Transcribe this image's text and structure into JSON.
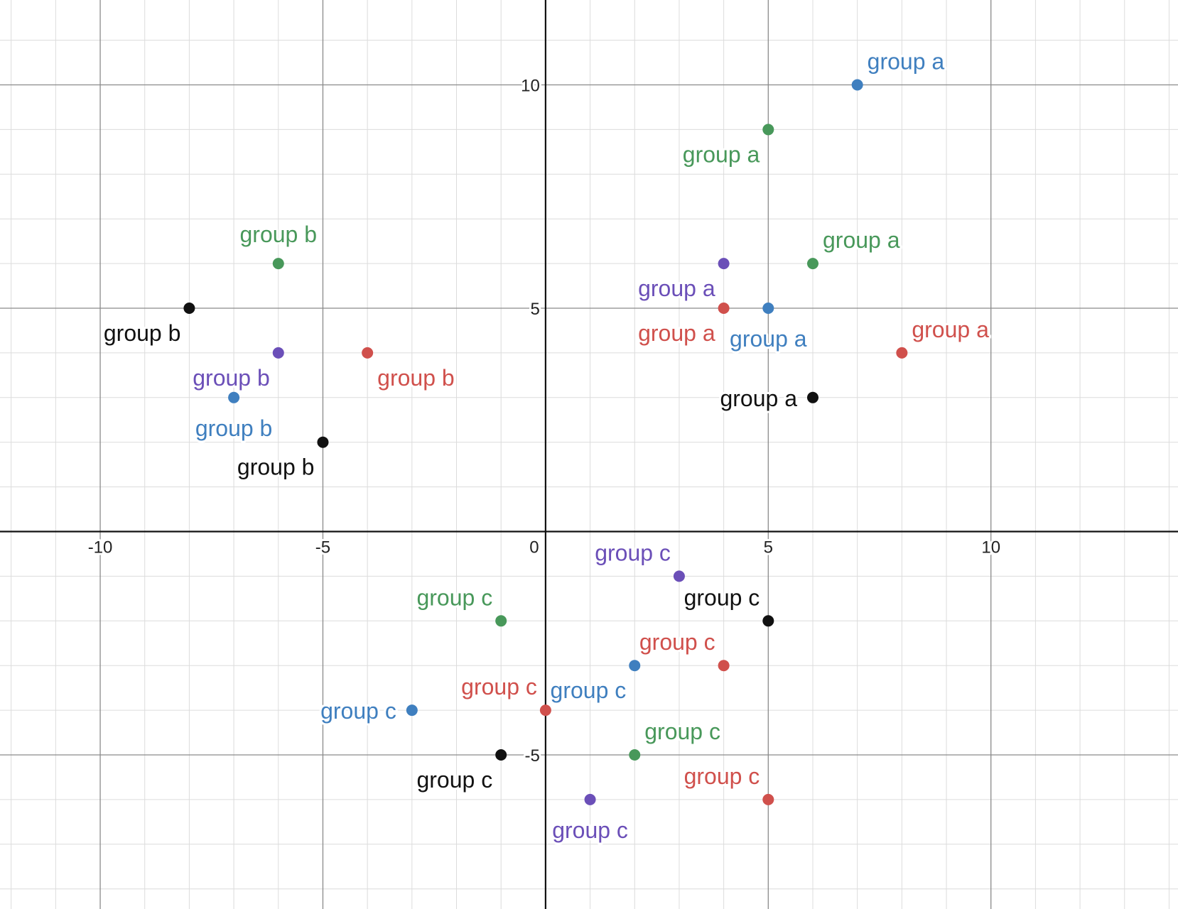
{
  "chart_data": {
    "type": "scatter",
    "title": "",
    "xlabel": "",
    "ylabel": "",
    "xlim": [
      -12.25,
      14.2
    ],
    "ylim": [
      -8.45,
      11.9
    ],
    "grid": true,
    "minor_grid_step": 1,
    "major_grid_step": 5,
    "x_ticks": [
      {
        "value": -10,
        "label": "-10"
      },
      {
        "value": -5,
        "label": "-5"
      },
      {
        "value": 0,
        "label": "0"
      },
      {
        "value": 5,
        "label": "5"
      },
      {
        "value": 10,
        "label": "10"
      }
    ],
    "y_ticks": [
      {
        "value": 10,
        "label": "10"
      },
      {
        "value": 5,
        "label": "5"
      },
      {
        "value": -5,
        "label": "-5"
      }
    ],
    "colors": {
      "blue": "#3f7fbf",
      "green": "#48985a",
      "purple": "#6b4fb8",
      "red": "#d0504c",
      "black": "#111111"
    },
    "points": [
      {
        "x": 7,
        "y": 10,
        "color": "blue",
        "label": "group a",
        "anchor": "ne"
      },
      {
        "x": 5,
        "y": 9,
        "color": "green",
        "label": "group a",
        "anchor": "sw"
      },
      {
        "x": 6,
        "y": 6,
        "color": "green",
        "label": "group a",
        "anchor": "ne"
      },
      {
        "x": 4,
        "y": 6,
        "color": "purple",
        "label": "group a",
        "anchor": "sw"
      },
      {
        "x": 4,
        "y": 5,
        "color": "red",
        "label": "group a",
        "anchor": "sw"
      },
      {
        "x": 5,
        "y": 5,
        "color": "blue",
        "label": "group a",
        "anchor": "s"
      },
      {
        "x": 8,
        "y": 4,
        "color": "red",
        "label": "group a",
        "anchor": "ne"
      },
      {
        "x": 6,
        "y": 3,
        "color": "black",
        "label": "group a",
        "anchor": "w"
      },
      {
        "x": -6,
        "y": 6,
        "color": "green",
        "label": "group b",
        "anchor": "n"
      },
      {
        "x": -8,
        "y": 5,
        "color": "black",
        "label": "group b",
        "anchor": "sw"
      },
      {
        "x": -6,
        "y": 4,
        "color": "purple",
        "label": "group b",
        "anchor": "sw"
      },
      {
        "x": -4,
        "y": 4,
        "color": "red",
        "label": "group b",
        "anchor": "se"
      },
      {
        "x": -7,
        "y": 3,
        "color": "blue",
        "label": "group b",
        "anchor": "s"
      },
      {
        "x": -5,
        "y": 2,
        "color": "black",
        "label": "group b",
        "anchor": "sw"
      },
      {
        "x": 3,
        "y": -1,
        "color": "purple",
        "label": "group c",
        "anchor": "nw"
      },
      {
        "x": 5,
        "y": -2,
        "color": "black",
        "label": "group c",
        "anchor": "nw"
      },
      {
        "x": -1,
        "y": -2,
        "color": "green",
        "label": "group c",
        "anchor": "nw"
      },
      {
        "x": 2,
        "y": -3,
        "color": "blue",
        "label": "group c",
        "anchor": "sw"
      },
      {
        "x": 4,
        "y": -3,
        "color": "red",
        "label": "group c",
        "anchor": "nw"
      },
      {
        "x": 0,
        "y": -4,
        "color": "red",
        "label": "group c",
        "anchor": "nw"
      },
      {
        "x": -3,
        "y": -4,
        "color": "blue",
        "label": "group c",
        "anchor": "w"
      },
      {
        "x": 2,
        "y": -5,
        "color": "green",
        "label": "group c",
        "anchor": "ne"
      },
      {
        "x": -1,
        "y": -5,
        "color": "black",
        "label": "group c",
        "anchor": "sw"
      },
      {
        "x": 5,
        "y": -6,
        "color": "red",
        "label": "group c",
        "anchor": "nw"
      },
      {
        "x": 1,
        "y": -6,
        "color": "purple",
        "label": "group c",
        "anchor": "s"
      }
    ]
  }
}
